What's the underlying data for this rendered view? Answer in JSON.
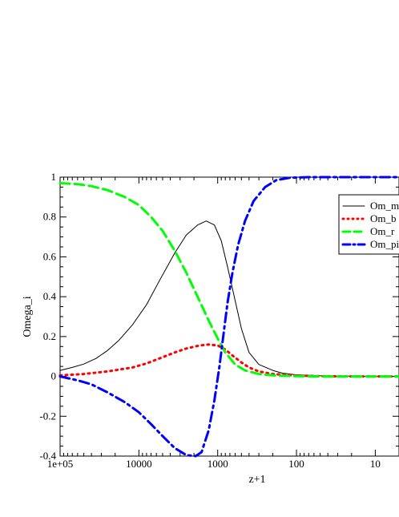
{
  "chart_data": {
    "type": "line",
    "xlabel": "z+1",
    "ylabel": "Omega_i",
    "x_scale": "log",
    "x_reversed": true,
    "xlim": [
      100000,
      5
    ],
    "ylim": [
      -0.4,
      1
    ],
    "grid": false,
    "legend_position": "top-right",
    "x_ticks": [
      100000,
      10000,
      1000,
      100,
      10
    ],
    "x_tick_labels": [
      "1e+05",
      "10000",
      "1000",
      "100",
      "10"
    ],
    "y_ticks": [
      -0.4,
      -0.2,
      0,
      0.2,
      0.4,
      0.6,
      0.8,
      1
    ],
    "y_tick_labels": [
      "-0.4",
      "-0.2",
      "0",
      "0.2",
      "0.4",
      "0.6",
      "0.8",
      "1"
    ],
    "series": [
      {
        "name": "Om_m",
        "color": "#000000",
        "dash": "solid",
        "points": [
          [
            100000,
            0.03
          ],
          [
            70000,
            0.045
          ],
          [
            50000,
            0.062
          ],
          [
            35000,
            0.09
          ],
          [
            25000,
            0.13
          ],
          [
            18000,
            0.18
          ],
          [
            12000,
            0.26
          ],
          [
            8000,
            0.36
          ],
          [
            5500,
            0.48
          ],
          [
            3500,
            0.62
          ],
          [
            2500,
            0.71
          ],
          [
            1800,
            0.76
          ],
          [
            1400,
            0.78
          ],
          [
            1100,
            0.76
          ],
          [
            900,
            0.68
          ],
          [
            750,
            0.55
          ],
          [
            600,
            0.38
          ],
          [
            500,
            0.24
          ],
          [
            400,
            0.12
          ],
          [
            300,
            0.06
          ],
          [
            200,
            0.03
          ],
          [
            150,
            0.016
          ],
          [
            100,
            0.008
          ],
          [
            50,
            0.003
          ],
          [
            20,
            0.001
          ],
          [
            10,
            0
          ],
          [
            5,
            0
          ]
        ]
      },
      {
        "name": "Om_b",
        "color": "#ff0000",
        "dash": "dotted",
        "points": [
          [
            100000,
            0.005
          ],
          [
            50000,
            0.012
          ],
          [
            25000,
            0.025
          ],
          [
            12000,
            0.045
          ],
          [
            8000,
            0.065
          ],
          [
            5500,
            0.09
          ],
          [
            3500,
            0.12
          ],
          [
            2500,
            0.14
          ],
          [
            1700,
            0.155
          ],
          [
            1300,
            0.16
          ],
          [
            1000,
            0.155
          ],
          [
            800,
            0.135
          ],
          [
            650,
            0.105
          ],
          [
            500,
            0.07
          ],
          [
            400,
            0.045
          ],
          [
            300,
            0.025
          ],
          [
            200,
            0.012
          ],
          [
            100,
            0.004
          ],
          [
            50,
            0.001
          ],
          [
            20,
            0
          ],
          [
            10,
            0
          ],
          [
            5,
            0
          ]
        ]
      },
      {
        "name": "Om_r",
        "color": "#00ff00",
        "dash": "dashed",
        "points": [
          [
            100000,
            0.97
          ],
          [
            60000,
            0.965
          ],
          [
            40000,
            0.955
          ],
          [
            25000,
            0.935
          ],
          [
            15000,
            0.9
          ],
          [
            10000,
            0.86
          ],
          [
            7000,
            0.8
          ],
          [
            5000,
            0.73
          ],
          [
            3500,
            0.63
          ],
          [
            2500,
            0.52
          ],
          [
            1800,
            0.4
          ],
          [
            1300,
            0.28
          ],
          [
            1000,
            0.19
          ],
          [
            800,
            0.12
          ],
          [
            600,
            0.06
          ],
          [
            450,
            0.03
          ],
          [
            300,
            0.012
          ],
          [
            200,
            0.005
          ],
          [
            100,
            0.001
          ],
          [
            50,
            0
          ],
          [
            10,
            0
          ],
          [
            5,
            0
          ]
        ]
      },
      {
        "name": "Om_pi",
        "color": "#0000ff",
        "dash": "dash-dot",
        "points": [
          [
            100000,
            0
          ],
          [
            60000,
            -0.02
          ],
          [
            40000,
            -0.04
          ],
          [
            25000,
            -0.08
          ],
          [
            15000,
            -0.13
          ],
          [
            10000,
            -0.18
          ],
          [
            7000,
            -0.24
          ],
          [
            5000,
            -0.3
          ],
          [
            3500,
            -0.36
          ],
          [
            2500,
            -0.395
          ],
          [
            1900,
            -0.4
          ],
          [
            1600,
            -0.38
          ],
          [
            1300,
            -0.27
          ],
          [
            1100,
            -0.12
          ],
          [
            950,
            0.05
          ],
          [
            850,
            0.2
          ],
          [
            750,
            0.37
          ],
          [
            650,
            0.52
          ],
          [
            550,
            0.66
          ],
          [
            450,
            0.78
          ],
          [
            350,
            0.88
          ],
          [
            250,
            0.95
          ],
          [
            180,
            0.985
          ],
          [
            120,
            0.997
          ],
          [
            70,
            1
          ],
          [
            30,
            1
          ],
          [
            10,
            1
          ],
          [
            5,
            1
          ]
        ]
      }
    ]
  }
}
